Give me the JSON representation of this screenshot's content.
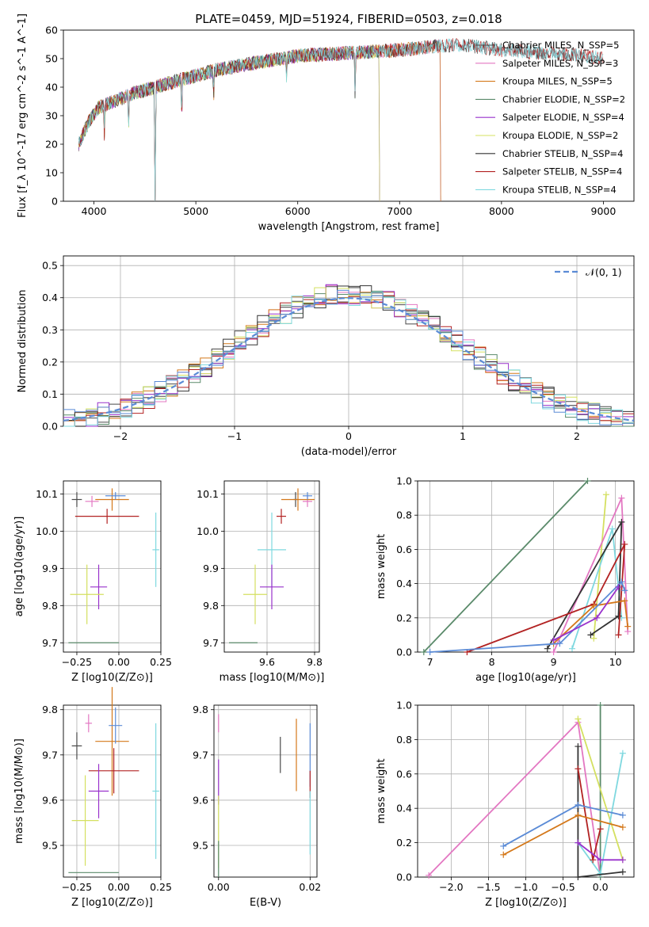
{
  "figure": {
    "title": "PLATE=0459, MJD=51924, FIBERID=0503, z=0.018"
  },
  "colors": {
    "Chabrier MILES": "#4a4a4a",
    "Salpeter MILES": "#e377c2",
    "Kroupa MILES": "#d4781a",
    "Chabrier ELODIE": "#5a8a6a",
    "Salpeter ELODIE": "#9932cc",
    "Kroupa ELODIE": "#d4e060",
    "Chabrier STELIB": "#333333",
    "Salpeter STELIB": "#b22222",
    "Kroupa STELIB": "#7fd8df",
    "model_blue": "#5b8bd6",
    "grid": "#b0b0b0"
  },
  "chart_data": [
    {
      "id": "spectrum",
      "type": "line",
      "title": "PLATE=0459, MJD=51924, FIBERID=0503, z=0.018",
      "xlabel": "wavelength [Angstrom, rest frame]",
      "ylabel": "Flux [f_λ 10^-17 erg cm^-2 s^-1 A^-1]",
      "xlim": [
        3700,
        9300
      ],
      "ylim": [
        0,
        60
      ],
      "xticks": [
        "4000",
        "5000",
        "6000",
        "7000",
        "8000",
        "9000"
      ],
      "yticks": [
        "0",
        "10",
        "20",
        "30",
        "40",
        "50",
        "60"
      ],
      "grid": false,
      "legend_position": "right",
      "legend": [
        "Chabrier MILES, N_SSP=5",
        "Salpeter MILES, N_SSP=3",
        "Kroupa MILES, N_SSP=5",
        "Chabrier ELODIE, N_SSP=2",
        "Salpeter ELODIE, N_SSP=4",
        "Kroupa ELODIE, N_SSP=2",
        "Chabrier STELIB, N_SSP=4",
        "Salpeter STELIB, N_SSP=4",
        "Kroupa STELIB, N_SSP=4"
      ],
      "continuum": [
        [
          3850,
          20
        ],
        [
          3950,
          28
        ],
        [
          4050,
          33
        ],
        [
          4200,
          35
        ],
        [
          4400,
          38
        ],
        [
          4600,
          40
        ],
        [
          4800,
          42
        ],
        [
          5000,
          44
        ],
        [
          5200,
          46
        ],
        [
          5500,
          48
        ],
        [
          6000,
          51
        ],
        [
          6500,
          52
        ],
        [
          7000,
          53
        ],
        [
          7400,
          54.5
        ],
        [
          7600,
          55
        ],
        [
          7800,
          54
        ],
        [
          8000,
          53
        ],
        [
          8400,
          52
        ],
        [
          8800,
          51
        ],
        [
          9000,
          50.5
        ]
      ],
      "series_ranges": [
        {
          "name": "Chabrier MILES",
          "xmax": 7400
        },
        {
          "name": "Salpeter MILES",
          "xmax": 7400
        },
        {
          "name": "Kroupa MILES",
          "xmax": 7400
        },
        {
          "name": "Chabrier ELODIE",
          "xmax": 6800
        },
        {
          "name": "Salpeter ELODIE",
          "xmax": 6800
        },
        {
          "name": "Kroupa ELODIE",
          "xmax": 6800
        },
        {
          "name": "Chabrier STELIB",
          "xmax": 9000
        },
        {
          "name": "Salpeter STELIB",
          "xmax": 9000
        },
        {
          "name": "Kroupa STELIB",
          "xmax": 9000
        }
      ]
    },
    {
      "id": "residuals",
      "type": "line",
      "xlabel": "(data-model)/error",
      "ylabel": "Normed distribution",
      "xlim": [
        -2.5,
        2.5
      ],
      "ylim": [
        0,
        0.53
      ],
      "xticks": [
        "−2",
        "−1",
        "0",
        "1",
        "2"
      ],
      "yticks": [
        "0.0",
        "0.1",
        "0.2",
        "0.3",
        "0.4",
        "0.5"
      ],
      "grid": true,
      "legend_position": "top-right",
      "legend": [
        "𝒩(0, 1)"
      ],
      "bin_width": 0.1
    },
    {
      "id": "age_vs_Z",
      "type": "scatter",
      "xlabel": "Z [log10(Z/Z⊙)]",
      "ylabel": "age [log10(age/yr)]",
      "xlim": [
        -0.33,
        0.25
      ],
      "ylim": [
        9.675,
        10.135
      ],
      "xticks": [
        "−0.25",
        "0.00",
        "0.25"
      ],
      "yticks": [
        "9.7",
        "9.8",
        "9.9",
        "10.0",
        "10.1"
      ],
      "grid": true,
      "points": [
        {
          "series": "Chabrier MILES",
          "x": -0.25,
          "y": 10.085,
          "xerr": 0.03,
          "yerr": 0.02
        },
        {
          "series": "Salpeter MILES",
          "x": -0.16,
          "y": 10.08,
          "xerr": 0.04,
          "yerr": 0.015
        },
        {
          "series": "Kroupa MILES",
          "x": -0.04,
          "y": 10.085,
          "xerr": 0.1,
          "yerr": 0.03
        },
        {
          "series": "Model blue",
          "x": -0.02,
          "y": 10.095,
          "xerr": 0.06,
          "yerr": 0.01
        },
        {
          "series": "Salpeter STELIB",
          "x": -0.07,
          "y": 10.04,
          "xerr": 0.19,
          "yerr": 0.02
        },
        {
          "series": "Kroupa STELIB",
          "x": 0.22,
          "y": 9.95,
          "xerr": 0.02,
          "yerr": 0.1
        },
        {
          "series": "Salpeter ELODIE",
          "x": -0.12,
          "y": 9.85,
          "xerr": 0.05,
          "yerr": 0.06
        },
        {
          "series": "Kroupa ELODIE",
          "x": -0.19,
          "y": 9.83,
          "xerr": 0.1,
          "yerr": 0.08
        },
        {
          "series": "Chabrier ELODIE",
          "x": -0.15,
          "y": 9.7,
          "xerr": 0.15,
          "yerr": 0.0
        }
      ]
    },
    {
      "id": "age_vs_mass",
      "type": "scatter",
      "xlabel": "mass [log10(M/M⊙)]",
      "ylabel": "",
      "xlim": [
        9.42,
        9.82
      ],
      "ylim": [
        9.675,
        10.135
      ],
      "xticks": [
        "9.6",
        "9.8"
      ],
      "yticks": [
        "9.7",
        "9.8",
        "9.9",
        "10.0",
        "10.1"
      ],
      "grid": true,
      "points": [
        {
          "series": "Chabrier MILES",
          "x": 9.72,
          "y": 10.085,
          "xerr": 0.01,
          "yerr": 0.02
        },
        {
          "series": "Salpeter MILES",
          "x": 9.77,
          "y": 10.08,
          "xerr": 0.02,
          "yerr": 0.015
        },
        {
          "series": "Kroupa MILES",
          "x": 9.73,
          "y": 10.085,
          "xerr": 0.07,
          "yerr": 0.03
        },
        {
          "series": "Model blue",
          "x": 9.77,
          "y": 10.095,
          "xerr": 0.02,
          "yerr": 0.01
        },
        {
          "series": "Salpeter STELIB",
          "x": 9.66,
          "y": 10.04,
          "xerr": 0.02,
          "yerr": 0.02
        },
        {
          "series": "Kroupa STELIB",
          "x": 9.62,
          "y": 9.95,
          "xerr": 0.06,
          "yerr": 0.1
        },
        {
          "series": "Salpeter ELODIE",
          "x": 9.62,
          "y": 9.85,
          "xerr": 0.05,
          "yerr": 0.06
        },
        {
          "series": "Kroupa ELODIE",
          "x": 9.55,
          "y": 9.83,
          "xerr": 0.05,
          "yerr": 0.08
        },
        {
          "series": "Chabrier ELODIE",
          "x": 9.5,
          "y": 9.7,
          "xerr": 0.06,
          "yerr": 0.0
        }
      ]
    },
    {
      "id": "weight_vs_age",
      "type": "line",
      "xlabel": "age  [log10(age/yr)]",
      "ylabel": "mass weight",
      "xlim": [
        6.8,
        10.3
      ],
      "ylim": [
        0.0,
        1.0
      ],
      "xticks": [
        "7",
        "8",
        "9",
        "10"
      ],
      "yticks": [
        "0.0",
        "0.2",
        "0.4",
        "0.6",
        "0.8",
        "1.0"
      ],
      "grid": true,
      "series": [
        {
          "name": "Chabrier ELODIE",
          "points": [
            [
              6.9,
              0.0
            ],
            [
              9.55,
              1.0
            ]
          ]
        },
        {
          "name": "Kroupa ELODIE",
          "points": [
            [
              9.65,
              0.08
            ],
            [
              9.85,
              0.92
            ]
          ]
        },
        {
          "name": "Salpeter MILES",
          "points": [
            [
              9.0,
              0.0
            ],
            [
              10.1,
              0.9
            ],
            [
              10.2,
              0.12
            ]
          ]
        },
        {
          "name": "Kroupa STELIB",
          "points": [
            [
              9.3,
              0.02
            ],
            [
              9.95,
              0.72
            ],
            [
              10.1,
              0.2
            ]
          ]
        },
        {
          "name": "Chabrier STELIB",
          "points": [
            [
              8.9,
              0.02
            ],
            [
              10.1,
              0.76
            ],
            [
              10.05,
              0.21
            ],
            [
              9.6,
              0.1
            ]
          ]
        },
        {
          "name": "Salpeter STELIB",
          "points": [
            [
              7.6,
              0.0
            ],
            [
              9.65,
              0.28
            ],
            [
              10.15,
              0.63
            ],
            [
              10.05,
              0.1
            ]
          ]
        },
        {
          "name": "Kroupa MILES",
          "points": [
            [
              9.0,
              0.05
            ],
            [
              9.65,
              0.27
            ],
            [
              10.15,
              0.3
            ],
            [
              10.2,
              0.15
            ]
          ]
        },
        {
          "name": "Model blue",
          "points": [
            [
              7.0,
              0.0
            ],
            [
              9.1,
              0.05
            ],
            [
              10.1,
              0.41
            ],
            [
              10.15,
              0.36
            ]
          ]
        },
        {
          "name": "Salpeter ELODIE",
          "points": [
            [
              9.0,
              0.07
            ],
            [
              9.7,
              0.2
            ],
            [
              10.05,
              0.38
            ]
          ]
        }
      ]
    },
    {
      "id": "mass_vs_Z",
      "type": "scatter",
      "xlabel": "Z [log10(Z/Z⊙)]",
      "ylabel": "mass [log10(M/M⊙)]",
      "xlim": [
        -0.33,
        0.25
      ],
      "ylim": [
        9.43,
        9.81
      ],
      "xticks": [
        "−0.25",
        "0.00",
        "0.25"
      ],
      "yticks": [
        "9.5",
        "9.6",
        "9.7",
        "9.8"
      ],
      "grid": true,
      "points": [
        {
          "series": "Chabrier MILES",
          "x": -0.25,
          "y": 9.72,
          "xerr": 0.03,
          "yerr": 0.03
        },
        {
          "series": "Salpeter MILES",
          "x": -0.18,
          "y": 9.77,
          "xerr": 0.02,
          "yerr": 0.02
        },
        {
          "series": "Kroupa MILES",
          "x": -0.04,
          "y": 9.73,
          "xerr": 0.1,
          "yerr": 0.12
        },
        {
          "series": "Model blue",
          "x": -0.02,
          "y": 9.765,
          "xerr": 0.04,
          "yerr": 0.04
        },
        {
          "series": "Salpeter STELIB",
          "x": -0.03,
          "y": 9.665,
          "xerr": 0.15,
          "yerr": 0.05
        },
        {
          "series": "Kroupa STELIB",
          "x": 0.22,
          "y": 9.62,
          "xerr": 0.02,
          "yerr": 0.15
        },
        {
          "series": "Salpeter ELODIE",
          "x": -0.12,
          "y": 9.62,
          "xerr": 0.06,
          "yerr": 0.06
        },
        {
          "series": "Kroupa ELODIE",
          "x": -0.2,
          "y": 9.555,
          "xerr": 0.08,
          "yerr": 0.1
        },
        {
          "series": "Chabrier ELODIE",
          "x": -0.15,
          "y": 9.44,
          "xerr": 0.15,
          "yerr": 0.0
        }
      ]
    },
    {
      "id": "mass_vs_EBV",
      "type": "scatter",
      "xlabel": "E(B-V)",
      "ylabel": "",
      "xlim": [
        -0.001,
        0.0215
      ],
      "ylim": [
        9.43,
        9.81
      ],
      "xticks": [
        "0.00",
        "0.02"
      ],
      "yticks": [
        "9.5",
        "9.6",
        "9.7",
        "9.8"
      ],
      "grid": true,
      "points": [
        {
          "series": "Chabrier MILES",
          "x": 0.0135,
          "y": 9.7,
          "xerr": 0.0,
          "yerr": 0.04
        },
        {
          "series": "Kroupa MILES",
          "x": 0.017,
          "y": 9.7,
          "xerr": 0.0,
          "yerr": 0.08
        },
        {
          "series": "Model blue",
          "x": 0.02,
          "y": 9.7,
          "xerr": 0.0,
          "yerr": 0.07
        },
        {
          "series": "Salpeter STELIB",
          "x": 0.02,
          "y": 9.635,
          "xerr": 0.0,
          "yerr": 0.03
        },
        {
          "series": "Kroupa STELIB",
          "x": 0.02,
          "y": 9.55,
          "xerr": 0.0,
          "yerr": 0.07
        },
        {
          "series": "Salpeter MILES",
          "x": 0.0,
          "y": 9.77,
          "xerr": 0.0,
          "yerr": 0.02
        },
        {
          "series": "Salpeter ELODIE",
          "x": 0.0,
          "y": 9.64,
          "xerr": 0.0,
          "yerr": 0.05
        },
        {
          "series": "Kroupa ELODIE",
          "x": 0.0,
          "y": 9.53,
          "xerr": 0.0,
          "yerr": 0.08
        },
        {
          "series": "Chabrier ELODIE",
          "x": 0.0,
          "y": 9.47,
          "xerr": 0.0,
          "yerr": 0.04
        }
      ]
    },
    {
      "id": "weight_vs_Z",
      "type": "line",
      "xlabel": "Z [log10(Z/Z⊙)]",
      "ylabel": "mass weight",
      "xlim": [
        -2.45,
        0.45
      ],
      "ylim": [
        0.0,
        1.0
      ],
      "xticks": [
        "−2.0",
        "−1.5",
        "−1.0",
        "−0.5",
        "0.0"
      ],
      "yticks": [
        "0.0",
        "0.2",
        "0.4",
        "0.6",
        "0.8",
        "1.0"
      ],
      "grid": true,
      "series": [
        {
          "name": "Salpeter MILES",
          "points": [
            [
              -2.3,
              0.01
            ],
            [
              -0.3,
              0.9
            ],
            [
              0.0,
              0.0
            ]
          ]
        },
        {
          "name": "Chabrier ELODIE",
          "points": [
            [
              0.0,
              0.0
            ],
            [
              0.0,
              1.0
            ]
          ]
        },
        {
          "name": "Kroupa ELODIE",
          "points": [
            [
              -0.3,
              0.92
            ],
            [
              0.3,
              0.1
            ]
          ]
        },
        {
          "name": "Kroupa STELIB",
          "points": [
            [
              -0.3,
              0.2
            ],
            [
              0.0,
              0.02
            ],
            [
              0.3,
              0.72
            ]
          ]
        },
        {
          "name": "Chabrier STELIB",
          "points": [
            [
              -0.3,
              0.76
            ],
            [
              -0.3,
              0.0
            ],
            [
              0.3,
              0.03
            ]
          ]
        },
        {
          "name": "Salpeter STELIB",
          "points": [
            [
              -0.3,
              0.63
            ],
            [
              -0.1,
              0.1
            ],
            [
              0.0,
              0.28
            ]
          ]
        },
        {
          "name": "Model blue",
          "points": [
            [
              -1.3,
              0.18
            ],
            [
              -0.3,
              0.42
            ],
            [
              0.3,
              0.36
            ]
          ]
        },
        {
          "name": "Kroupa MILES",
          "points": [
            [
              -1.3,
              0.13
            ],
            [
              -0.3,
              0.36
            ],
            [
              0.3,
              0.29
            ]
          ]
        },
        {
          "name": "Salpeter ELODIE",
          "points": [
            [
              -0.3,
              0.2
            ],
            [
              0.0,
              0.1
            ],
            [
              0.3,
              0.1
            ]
          ]
        }
      ]
    }
  ]
}
